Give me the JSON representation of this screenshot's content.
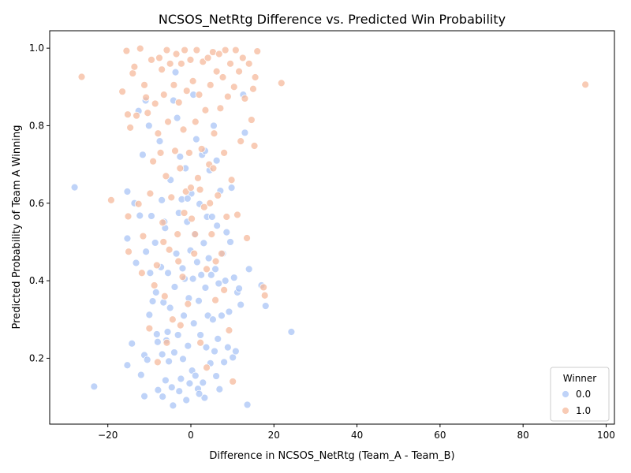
{
  "chart_data": {
    "type": "scatter",
    "title": "NCSOS_NetRtg Difference vs. Predicted Win Probability",
    "xlabel": "Difference in NCSOS_NetRtg (Team_A - Team_B)",
    "ylabel": "Predicted Probability of Team A Winning",
    "xlim": [
      -34,
      102
    ],
    "ylim": [
      0.03,
      1.045
    ],
    "x_ticks": [
      -20,
      0,
      20,
      40,
      60,
      80,
      100
    ],
    "y_ticks": [
      0.2,
      0.4,
      0.6,
      0.8,
      1.0
    ],
    "x_tick_labels": [
      "−20",
      "0",
      "20",
      "40",
      "60",
      "80",
      "100"
    ],
    "y_tick_labels": [
      "0.2",
      "0.4",
      "0.6",
      "0.8",
      "1.0"
    ],
    "grid": false,
    "legend": {
      "title": "Winner",
      "placement": "bottom-right",
      "entries": [
        {
          "label": "0.0",
          "color": "#a9c4f5"
        },
        {
          "label": "1.0",
          "color": "#f5b99c"
        }
      ]
    },
    "marker_edge_color": "#ffffff",
    "marker_alpha": 0.75,
    "series": [
      {
        "name": "0.0",
        "color": "#a9c4f5",
        "points": [
          [
            -28,
            0.641
          ],
          [
            -23.3,
            0.127
          ],
          [
            -15.3,
            0.63
          ],
          [
            -15.3,
            0.509
          ],
          [
            -15.3,
            0.182
          ],
          [
            -14.2,
            0.238
          ],
          [
            -13.6,
            0.6
          ],
          [
            -13.2,
            0.446
          ],
          [
            -12.6,
            0.838
          ],
          [
            -12.3,
            0.568
          ],
          [
            -12.0,
            0.157
          ],
          [
            -11.6,
            0.725
          ],
          [
            -11.2,
            0.102
          ],
          [
            -11.2,
            0.208
          ],
          [
            -10.9,
            0.865
          ],
          [
            -10.8,
            0.475
          ],
          [
            -10.5,
            0.196
          ],
          [
            -10.1,
            0.8
          ],
          [
            -10.0,
            0.312
          ],
          [
            -9.8,
            0.42
          ],
          [
            -9.5,
            0.567
          ],
          [
            -9.2,
            0.347
          ],
          [
            -8.6,
            0.498
          ],
          [
            -8.4,
            0.37
          ],
          [
            -8.2,
            0.262
          ],
          [
            -8.0,
            0.242
          ],
          [
            -7.9,
            0.118
          ],
          [
            -7.5,
            0.76
          ],
          [
            -7.2,
            0.435
          ],
          [
            -7.0,
            0.608
          ],
          [
            -6.9,
            0.21
          ],
          [
            -6.8,
            0.101
          ],
          [
            -6.6,
            0.344
          ],
          [
            -6.4,
            0.552
          ],
          [
            -6.2,
            0.536
          ],
          [
            -6.1,
            0.143
          ],
          [
            -5.9,
            0.246
          ],
          [
            -5.6,
            0.268
          ],
          [
            -5.5,
            0.42
          ],
          [
            -5.3,
            0.192
          ],
          [
            -5.0,
            0.33
          ],
          [
            -4.9,
            0.66
          ],
          [
            -4.6,
            0.125
          ],
          [
            -4.3,
            0.078
          ],
          [
            -4.0,
            0.215
          ],
          [
            -3.9,
            0.384
          ],
          [
            -3.7,
            0.938
          ],
          [
            -3.5,
            0.47
          ],
          [
            -3.3,
            0.82
          ],
          [
            -3.1,
            0.26
          ],
          [
            -2.9,
            0.575
          ],
          [
            -2.8,
            0.115
          ],
          [
            -2.6,
            0.72
          ],
          [
            -2.4,
            0.147
          ],
          [
            -2.2,
            0.61
          ],
          [
            -2.0,
            0.432
          ],
          [
            -1.9,
            0.198
          ],
          [
            -1.7,
            0.31
          ],
          [
            -1.5,
            0.405
          ],
          [
            -1.3,
            0.69
          ],
          [
            -1.1,
            0.092
          ],
          [
            -0.9,
            0.552
          ],
          [
            -0.7,
            0.232
          ],
          [
            -0.5,
            0.355
          ],
          [
            -0.3,
            0.135
          ],
          [
            -0.1,
            0.478
          ],
          [
            0.1,
            0.625
          ],
          [
            0.3,
            0.168
          ],
          [
            0.5,
            0.405
          ],
          [
            0.7,
            0.29
          ],
          [
            0.9,
            0.52
          ],
          [
            1.1,
            0.155
          ],
          [
            1.3,
            0.765
          ],
          [
            1.5,
            0.448
          ],
          [
            1.7,
            0.121
          ],
          [
            1.9,
            0.348
          ],
          [
            2.1,
            0.598
          ],
          [
            2.3,
            0.26
          ],
          [
            2.5,
            0.415
          ],
          [
            2.7,
            0.725
          ],
          [
            2.9,
            0.137
          ],
          [
            3.1,
            0.497
          ],
          [
            3.3,
            0.098
          ],
          [
            3.5,
            0.382
          ],
          [
            3.7,
            0.228
          ],
          [
            3.9,
            0.565
          ],
          [
            4.1,
            0.31
          ],
          [
            4.3,
            0.458
          ],
          [
            4.5,
            0.685
          ],
          [
            4.7,
            0.187
          ],
          [
            4.9,
            0.415
          ],
          [
            5.1,
            0.565
          ],
          [
            5.3,
            0.3
          ],
          [
            5.5,
            0.8
          ],
          [
            5.7,
            0.218
          ],
          [
            5.9,
            0.43
          ],
          [
            6.1,
            0.154
          ],
          [
            6.3,
            0.542
          ],
          [
            6.5,
            0.25
          ],
          [
            6.7,
            0.393
          ],
          [
            6.9,
            0.12
          ],
          [
            7.1,
            0.632
          ],
          [
            7.4,
            0.31
          ],
          [
            7.7,
            0.47
          ],
          [
            8.0,
            0.19
          ],
          [
            8.3,
            0.4
          ],
          [
            8.6,
            0.525
          ],
          [
            8.9,
            0.228
          ],
          [
            9.2,
            0.32
          ],
          [
            9.5,
            0.5
          ],
          [
            9.8,
            0.64
          ],
          [
            10.1,
            0.202
          ],
          [
            10.4,
            0.408
          ],
          [
            10.8,
            0.218
          ],
          [
            11.2,
            0.37
          ],
          [
            11.6,
            0.38
          ],
          [
            12.0,
            0.338
          ],
          [
            12.6,
            0.88
          ],
          [
            13.0,
            0.782
          ],
          [
            13.6,
            0.08
          ],
          [
            14.0,
            0.43
          ],
          [
            17.0,
            0.388
          ],
          [
            18.0,
            0.335
          ],
          [
            24.2,
            0.268
          ],
          [
            2.0,
            0.108
          ],
          [
            -0.8,
            0.612
          ],
          [
            3.4,
            0.735
          ],
          [
            -4.2,
            0.865
          ],
          [
            6.2,
            0.71
          ],
          [
            0.6,
            0.88
          ]
        ]
      },
      {
        "name": "1.0",
        "color": "#f5b99c",
        "points": [
          [
            -26.3,
            0.926
          ],
          [
            -19.2,
            0.608
          ],
          [
            -16.5,
            0.888
          ],
          [
            -15.5,
            0.993
          ],
          [
            -15.2,
            0.829
          ],
          [
            -15.1,
            0.566
          ],
          [
            -15.0,
            0.475
          ],
          [
            -14.6,
            0.795
          ],
          [
            -14.0,
            0.935
          ],
          [
            -13.6,
            0.952
          ],
          [
            -13.1,
            0.826
          ],
          [
            -12.6,
            0.598
          ],
          [
            -12.2,
            0.999
          ],
          [
            -11.8,
            0.42
          ],
          [
            -11.5,
            0.515
          ],
          [
            -11.2,
            0.905
          ],
          [
            -10.8,
            0.873
          ],
          [
            -10.4,
            0.833
          ],
          [
            -10.0,
            0.277
          ],
          [
            -9.8,
            0.625
          ],
          [
            -9.5,
            0.97
          ],
          [
            -9.1,
            0.708
          ],
          [
            -8.8,
            0.388
          ],
          [
            -8.6,
            0.857
          ],
          [
            -8.2,
            0.44
          ],
          [
            -7.9,
            0.78
          ],
          [
            -7.6,
            0.975
          ],
          [
            -7.3,
            0.73
          ],
          [
            -7.0,
            0.945
          ],
          [
            -6.8,
            0.55
          ],
          [
            -6.5,
            0.88
          ],
          [
            -6.3,
            0.36
          ],
          [
            -6.0,
            0.67
          ],
          [
            -5.8,
            0.995
          ],
          [
            -5.5,
            0.81
          ],
          [
            -5.2,
            0.48
          ],
          [
            -5.0,
            0.96
          ],
          [
            -4.7,
            0.615
          ],
          [
            -4.4,
            0.3
          ],
          [
            -4.1,
            0.905
          ],
          [
            -3.8,
            0.735
          ],
          [
            -3.5,
            0.985
          ],
          [
            -3.2,
            0.52
          ],
          [
            -2.9,
            0.86
          ],
          [
            -2.6,
            0.69
          ],
          [
            -2.3,
            0.96
          ],
          [
            -2.0,
            0.41
          ],
          [
            -1.8,
            0.79
          ],
          [
            -1.5,
            0.995
          ],
          [
            -1.2,
            0.63
          ],
          [
            -1.0,
            0.89
          ],
          [
            -0.7,
            0.34
          ],
          [
            -0.4,
            0.73
          ],
          [
            -0.1,
            0.97
          ],
          [
            0.2,
            0.56
          ],
          [
            0.5,
            0.915
          ],
          [
            0.8,
            0.47
          ],
          [
            1.1,
            0.81
          ],
          [
            1.4,
            0.995
          ],
          [
            1.7,
            0.665
          ],
          [
            2.0,
            0.88
          ],
          [
            2.3,
            0.24
          ],
          [
            2.6,
            0.74
          ],
          [
            2.9,
            0.965
          ],
          [
            3.2,
            0.59
          ],
          [
            3.5,
            0.84
          ],
          [
            3.8,
            0.43
          ],
          [
            4.1,
            0.975
          ],
          [
            4.4,
            0.7
          ],
          [
            4.7,
            0.905
          ],
          [
            5.0,
            0.52
          ],
          [
            5.3,
            0.99
          ],
          [
            5.6,
            0.78
          ],
          [
            5.9,
            0.35
          ],
          [
            6.2,
            0.94
          ],
          [
            6.5,
            0.62
          ],
          [
            6.8,
            0.985
          ],
          [
            7.1,
            0.845
          ],
          [
            7.4,
            0.47
          ],
          [
            7.7,
            0.925
          ],
          [
            8.0,
            0.73
          ],
          [
            8.3,
            0.995
          ],
          [
            8.6,
            0.565
          ],
          [
            8.9,
            0.875
          ],
          [
            9.2,
            0.272
          ],
          [
            9.5,
            0.96
          ],
          [
            9.8,
            0.66
          ],
          [
            10.1,
            0.14
          ],
          [
            10.4,
            0.9
          ],
          [
            10.8,
            0.995
          ],
          [
            11.2,
            0.57
          ],
          [
            11.6,
            0.94
          ],
          [
            12.0,
            0.76
          ],
          [
            12.5,
            0.975
          ],
          [
            13.0,
            0.87
          ],
          [
            13.5,
            0.51
          ],
          [
            14.0,
            0.96
          ],
          [
            14.6,
            0.815
          ],
          [
            15.0,
            0.895
          ],
          [
            15.3,
            0.748
          ],
          [
            15.5,
            0.925
          ],
          [
            16.0,
            0.992
          ],
          [
            17.5,
            0.383
          ],
          [
            17.8,
            0.362
          ],
          [
            21.8,
            0.91
          ],
          [
            95.0,
            0.906
          ],
          [
            -3.0,
            0.45
          ],
          [
            1.0,
            0.52
          ],
          [
            3.8,
            0.176
          ],
          [
            -2.5,
            0.285
          ],
          [
            6.0,
            0.45
          ],
          [
            -8.0,
            0.19
          ],
          [
            0.0,
            0.64
          ],
          [
            4.6,
            0.6
          ],
          [
            -5.8,
            0.24
          ],
          [
            2.2,
            0.635
          ],
          [
            -1.6,
            0.575
          ],
          [
            8.0,
            0.376
          ],
          [
            -6.6,
            0.5
          ],
          [
            5.4,
            0.69
          ]
        ]
      }
    ]
  }
}
